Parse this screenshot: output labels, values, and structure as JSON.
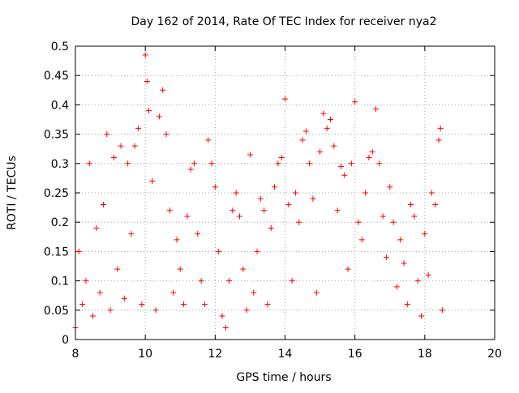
{
  "chart_data": {
    "type": "scatter",
    "title": "Day 162 of 2014, Rate Of TEC Index for receiver nya2",
    "xlabel": "GPS time / hours",
    "ylabel": "ROTI / TECUs",
    "xlim": [
      8,
      20
    ],
    "ylim": [
      0,
      0.5
    ],
    "xticks": [
      8,
      10,
      12,
      14,
      16,
      18,
      20
    ],
    "xtick_labels": [
      "8",
      "10",
      "12",
      "14",
      "16",
      "18",
      "20"
    ],
    "yticks": [
      0,
      0.05,
      0.1,
      0.15,
      0.2,
      0.25,
      0.3,
      0.35,
      0.4,
      0.45,
      0.5
    ],
    "ytick_labels": [
      "0",
      "0.05",
      "0.1",
      "0.15",
      "0.2",
      "0.25",
      "0.3",
      "0.35",
      "0.4",
      "0.45",
      "0.5"
    ],
    "grid": true,
    "marker": "+",
    "marker_color": "#ff0000",
    "series": [
      {
        "name": "ROTI",
        "points": [
          [
            8.0,
            0.02
          ],
          [
            8.1,
            0.15
          ],
          [
            8.2,
            0.06
          ],
          [
            8.3,
            0.1
          ],
          [
            8.4,
            0.3
          ],
          [
            8.5,
            0.04
          ],
          [
            8.6,
            0.19
          ],
          [
            8.7,
            0.08
          ],
          [
            8.8,
            0.23
          ],
          [
            8.9,
            0.35
          ],
          [
            9.0,
            0.05
          ],
          [
            9.1,
            0.31
          ],
          [
            9.2,
            0.12
          ],
          [
            9.3,
            0.33
          ],
          [
            9.4,
            0.07
          ],
          [
            9.5,
            0.3
          ],
          [
            9.6,
            0.18
          ],
          [
            9.7,
            0.33
          ],
          [
            9.8,
            0.36
          ],
          [
            9.9,
            0.06
          ],
          [
            10.0,
            0.485
          ],
          [
            10.05,
            0.44
          ],
          [
            10.1,
            0.39
          ],
          [
            10.2,
            0.27
          ],
          [
            10.3,
            0.05
          ],
          [
            10.4,
            0.38
          ],
          [
            10.5,
            0.425
          ],
          [
            10.6,
            0.35
          ],
          [
            10.7,
            0.22
          ],
          [
            10.8,
            0.08
          ],
          [
            10.9,
            0.17
          ],
          [
            11.0,
            0.12
          ],
          [
            11.1,
            0.06
          ],
          [
            11.2,
            0.21
          ],
          [
            11.3,
            0.29
          ],
          [
            11.4,
            0.3
          ],
          [
            11.5,
            0.18
          ],
          [
            11.6,
            0.1
          ],
          [
            11.7,
            0.06
          ],
          [
            11.8,
            0.34
          ],
          [
            11.9,
            0.3
          ],
          [
            12.0,
            0.26
          ],
          [
            12.1,
            0.15
          ],
          [
            12.2,
            0.04
          ],
          [
            12.3,
            0.02
          ],
          [
            12.4,
            0.1
          ],
          [
            12.5,
            0.22
          ],
          [
            12.6,
            0.25
          ],
          [
            12.7,
            0.21
          ],
          [
            12.8,
            0.12
          ],
          [
            12.9,
            0.05
          ],
          [
            13.0,
            0.315
          ],
          [
            13.1,
            0.08
          ],
          [
            13.2,
            0.15
          ],
          [
            13.3,
            0.24
          ],
          [
            13.4,
            0.22
          ],
          [
            13.5,
            0.06
          ],
          [
            13.6,
            0.19
          ],
          [
            13.7,
            0.26
          ],
          [
            13.8,
            0.3
          ],
          [
            13.9,
            0.31
          ],
          [
            14.0,
            0.41
          ],
          [
            14.1,
            0.23
          ],
          [
            14.2,
            0.1
          ],
          [
            14.3,
            0.25
          ],
          [
            14.4,
            0.2
          ],
          [
            14.5,
            0.34
          ],
          [
            14.6,
            0.355
          ],
          [
            14.7,
            0.3
          ],
          [
            14.8,
            0.24
          ],
          [
            14.9,
            0.08
          ],
          [
            15.0,
            0.32
          ],
          [
            15.1,
            0.385
          ],
          [
            15.2,
            0.36
          ],
          [
            15.3,
            0.375
          ],
          [
            15.4,
            0.33
          ],
          [
            15.5,
            0.22
          ],
          [
            15.6,
            0.295
          ],
          [
            15.7,
            0.28
          ],
          [
            15.8,
            0.12
          ],
          [
            15.9,
            0.3
          ],
          [
            16.0,
            0.405
          ],
          [
            16.1,
            0.2
          ],
          [
            16.2,
            0.17
          ],
          [
            16.3,
            0.25
          ],
          [
            16.4,
            0.31
          ],
          [
            16.5,
            0.32
          ],
          [
            16.6,
            0.393
          ],
          [
            16.7,
            0.3
          ],
          [
            16.8,
            0.21
          ],
          [
            16.9,
            0.14
          ],
          [
            17.0,
            0.26
          ],
          [
            17.1,
            0.2
          ],
          [
            17.2,
            0.09
          ],
          [
            17.3,
            0.17
          ],
          [
            17.4,
            0.13
          ],
          [
            17.5,
            0.06
          ],
          [
            17.6,
            0.23
          ],
          [
            17.7,
            0.21
          ],
          [
            17.8,
            0.1
          ],
          [
            17.9,
            0.04
          ],
          [
            18.0,
            0.18
          ],
          [
            18.1,
            0.11
          ],
          [
            18.2,
            0.25
          ],
          [
            18.3,
            0.23
          ],
          [
            18.4,
            0.34
          ],
          [
            18.45,
            0.36
          ],
          [
            18.5,
            0.05
          ]
        ]
      }
    ]
  }
}
